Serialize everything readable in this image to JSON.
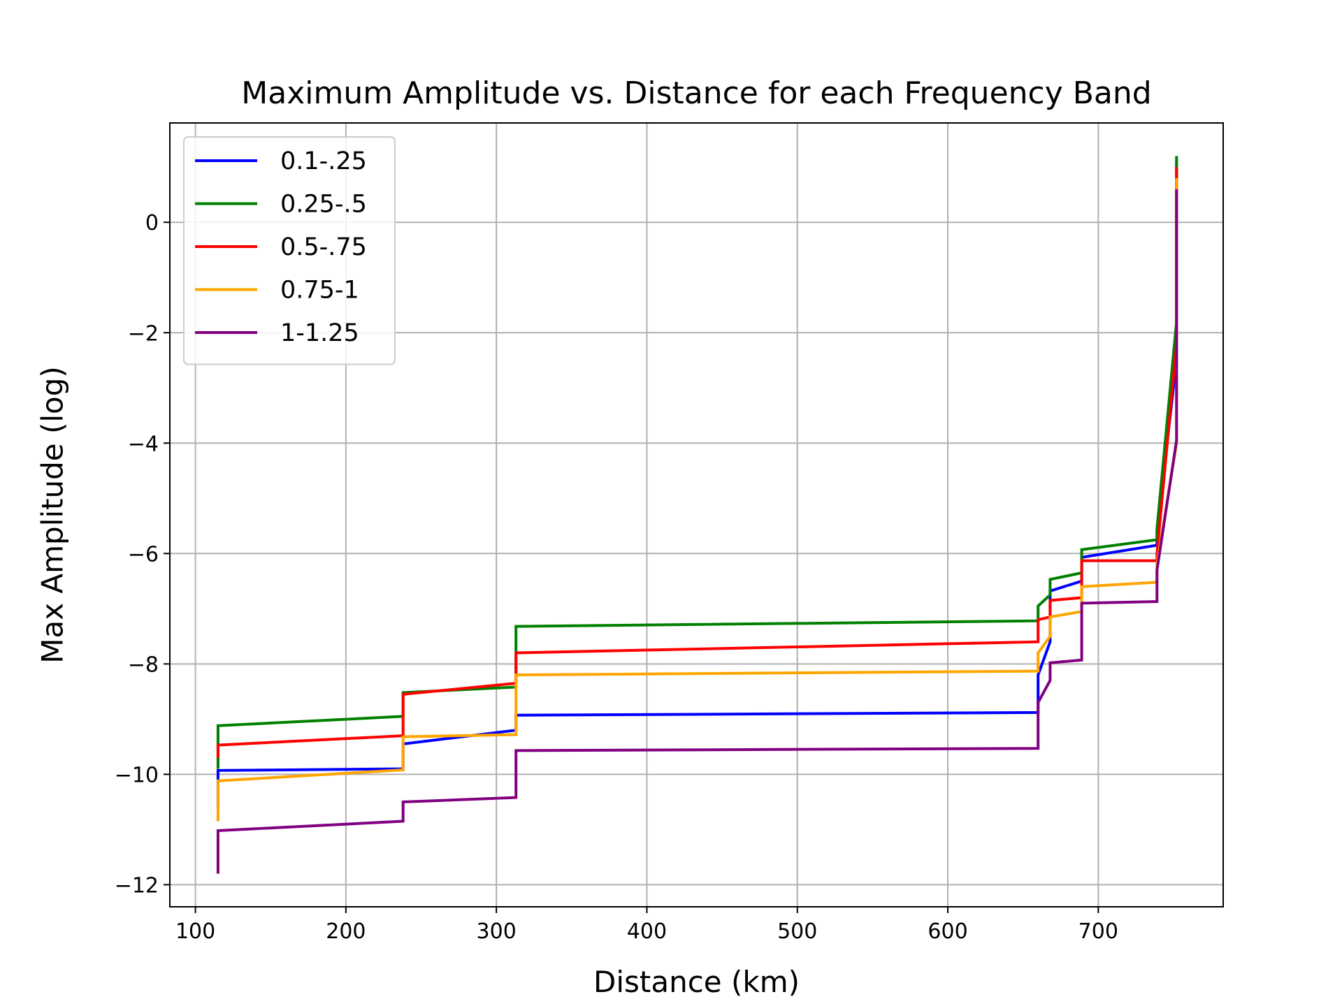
{
  "chart_data": {
    "type": "line",
    "title": "Maximum Amplitude vs. Distance for each Frequency Band",
    "xlabel": "Distance (km)",
    "ylabel": "Max Amplitude (log)",
    "xlim": [
      83,
      783
    ],
    "ylim": [
      -12.4,
      1.8
    ],
    "xticks": [
      100,
      200,
      300,
      400,
      500,
      600,
      700
    ],
    "xtick_labels": [
      "100",
      "200",
      "300",
      "400",
      "500",
      "600",
      "700"
    ],
    "yticks": [
      -12,
      -10,
      -8,
      -6,
      -4,
      -2,
      0
    ],
    "ytick_labels": [
      "−12",
      "−10",
      "−8",
      "−6",
      "−4",
      "−2",
      "0"
    ],
    "grid": true,
    "legend_position": "upper-left",
    "series": [
      {
        "name": "0.1-.25",
        "color": "#0000ff",
        "x": [
          115,
          115,
          238,
          238,
          313,
          313,
          660,
          660,
          668,
          668,
          689,
          689,
          739,
          739,
          752,
          752
        ],
        "y": [
          -10.6,
          -9.93,
          -9.9,
          -9.45,
          -9.2,
          -8.93,
          -8.88,
          -8.2,
          -7.6,
          -6.68,
          -6.5,
          -6.07,
          -5.85,
          -5.6,
          -2.5,
          1.1
        ]
      },
      {
        "name": "0.25-.5",
        "color": "#008000",
        "x": [
          115,
          115,
          238,
          238,
          313,
          313,
          660,
          660,
          668,
          668,
          689,
          689,
          739,
          739,
          752,
          752
        ],
        "y": [
          -9.9,
          -9.12,
          -8.95,
          -8.52,
          -8.42,
          -7.32,
          -7.22,
          -6.95,
          -6.75,
          -6.47,
          -6.35,
          -5.93,
          -5.75,
          -5.55,
          -1.8,
          1.2
        ]
      },
      {
        "name": "0.5-.75",
        "color": "#ff0000",
        "x": [
          115,
          115,
          238,
          238,
          313,
          313,
          660,
          660,
          668,
          668,
          689,
          689,
          739,
          739,
          752,
          752
        ],
        "y": [
          -9.7,
          -9.47,
          -9.3,
          -8.55,
          -8.35,
          -7.8,
          -7.6,
          -7.2,
          -7.15,
          -6.85,
          -6.8,
          -6.13,
          -6.13,
          -6.0,
          -2.2,
          1.0
        ]
      },
      {
        "name": "0.75-1",
        "color": "#ffa500",
        "x": [
          115,
          115,
          238,
          238,
          313,
          313,
          660,
          660,
          668,
          668,
          689,
          689,
          739,
          739,
          752,
          752
        ],
        "y": [
          -10.85,
          -10.12,
          -9.92,
          -9.32,
          -9.28,
          -8.2,
          -8.13,
          -7.8,
          -7.5,
          -7.15,
          -7.05,
          -6.6,
          -6.52,
          -6.2,
          -4.0,
          0.8
        ]
      },
      {
        "name": "1-1.25",
        "color": "#800080",
        "x": [
          115,
          115,
          238,
          238,
          313,
          313,
          660,
          660,
          668,
          668,
          689,
          689,
          739,
          739,
          752,
          752
        ],
        "y": [
          -11.8,
          -11.02,
          -10.85,
          -10.5,
          -10.42,
          -9.57,
          -9.53,
          -8.7,
          -8.3,
          -7.98,
          -7.93,
          -6.9,
          -6.87,
          -6.3,
          -3.95,
          0.6
        ]
      }
    ]
  }
}
